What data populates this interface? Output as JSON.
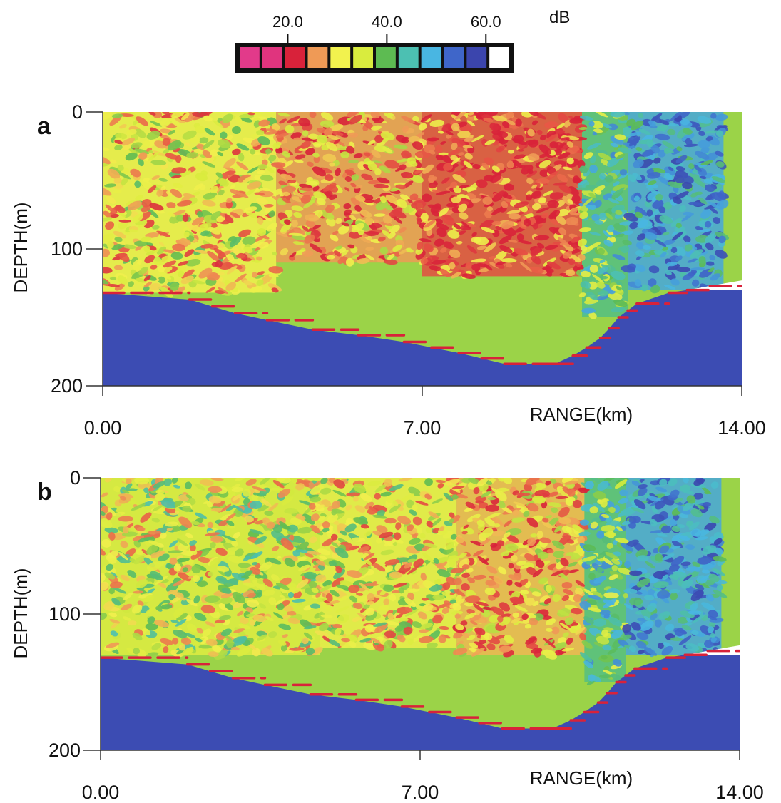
{
  "colorbar": {
    "unit": "dB",
    "tick_labels": [
      "20.0",
      "40.0",
      "60.0"
    ],
    "tick_values": [
      20,
      40,
      60
    ],
    "range": [
      10,
      65
    ],
    "swatches": [
      "#e23a8a",
      "#e0347e",
      "#d8223a",
      "#ef9a56",
      "#f2f24e",
      "#d9ec3e",
      "#5dbb52",
      "#4cc0b2",
      "#49b6e2",
      "#3f66c9",
      "#3b45ad",
      "#ffffff"
    ]
  },
  "chart_data": [
    {
      "type": "heatmap",
      "panel_label": "a",
      "xlabel": "RANGE(km)",
      "ylabel": "DEPTH(m)",
      "xlim": [
        0,
        14
      ],
      "ylim": [
        200,
        0
      ],
      "x_ticks": [
        0,
        7,
        14
      ],
      "x_tick_labels": [
        "0.00",
        "7.00",
        "14.00"
      ],
      "y_ticks": [
        0,
        100,
        200
      ],
      "y_tick_labels": [
        "0",
        "100",
        "200"
      ],
      "value_unit": "dB",
      "grid": false,
      "bottom_profile": {
        "range_km": [
          0,
          1.9,
          2.4,
          2.9,
          3.6,
          4.6,
          5.6,
          6.6,
          7.2,
          7.8,
          8.3,
          8.8,
          9.9,
          10.3,
          10.6,
          10.9,
          11.1,
          11.3,
          11.5,
          11.7,
          12.4,
          12.8,
          13.3,
          14.0
        ],
        "depth_m": [
          132,
          137,
          142,
          147,
          152,
          159,
          163,
          168,
          172,
          176,
          180,
          184,
          184,
          178,
          172,
          165,
          158,
          150,
          145,
          140,
          132,
          130,
          127,
          123
        ]
      },
      "field_regions": [
        {
          "range_km": [
            0,
            3.8
          ],
          "depth_m": [
            0,
            132
          ],
          "typical_level_db": 30
        },
        {
          "range_km": [
            3.8,
            7.0
          ],
          "depth_m": [
            0,
            110
          ],
          "typical_level_db": 27
        },
        {
          "range_km": [
            7.0,
            10.5
          ],
          "depth_m": [
            0,
            120
          ],
          "typical_level_db": 23
        },
        {
          "range_km": [
            10.5,
            11.5
          ],
          "depth_m": [
            0,
            150
          ],
          "typical_level_db": 40
        },
        {
          "range_km": [
            11.5,
            13.6
          ],
          "depth_m": [
            0,
            130
          ],
          "typical_level_db": 47
        },
        {
          "range_km": [
            0,
            14
          ],
          "depth_m": [
            130,
            200
          ],
          "typical_level_db": 55
        }
      ]
    },
    {
      "type": "heatmap",
      "panel_label": "b",
      "xlabel": "RANGE(km)",
      "ylabel": "DEPTH(m)",
      "xlim": [
        0,
        14
      ],
      "ylim": [
        200,
        0
      ],
      "x_ticks": [
        0,
        7,
        14
      ],
      "x_tick_labels": [
        "0.00",
        "7.00",
        "14.00"
      ],
      "y_ticks": [
        0,
        100,
        200
      ],
      "y_tick_labels": [
        "0",
        "100",
        "200"
      ],
      "value_unit": "dB",
      "grid": false,
      "bottom_profile": {
        "range_km": [
          0,
          1.9,
          2.4,
          2.9,
          3.6,
          4.6,
          5.6,
          6.6,
          7.2,
          7.8,
          8.3,
          8.8,
          9.9,
          10.3,
          10.6,
          10.9,
          11.1,
          11.3,
          11.5,
          11.7,
          12.4,
          12.8,
          13.3,
          14.0
        ],
        "depth_m": [
          132,
          137,
          142,
          147,
          152,
          159,
          163,
          168,
          172,
          176,
          180,
          184,
          184,
          178,
          172,
          165,
          158,
          150,
          145,
          140,
          132,
          130,
          127,
          123
        ]
      },
      "field_regions": [
        {
          "range_km": [
            0,
            4.8
          ],
          "depth_m": [
            0,
            130
          ],
          "typical_level_db": 33
        },
        {
          "range_km": [
            4.8,
            7.8
          ],
          "depth_m": [
            0,
            125
          ],
          "typical_level_db": 31
        },
        {
          "range_km": [
            7.8,
            10.6
          ],
          "depth_m": [
            0,
            130
          ],
          "typical_level_db": 28
        },
        {
          "range_km": [
            10.6,
            11.5
          ],
          "depth_m": [
            0,
            150
          ],
          "typical_level_db": 40
        },
        {
          "range_km": [
            11.5,
            13.6
          ],
          "depth_m": [
            0,
            130
          ],
          "typical_level_db": 47
        },
        {
          "range_km": [
            0,
            14
          ],
          "depth_m": [
            130,
            200
          ],
          "typical_level_db": 55
        }
      ]
    }
  ]
}
